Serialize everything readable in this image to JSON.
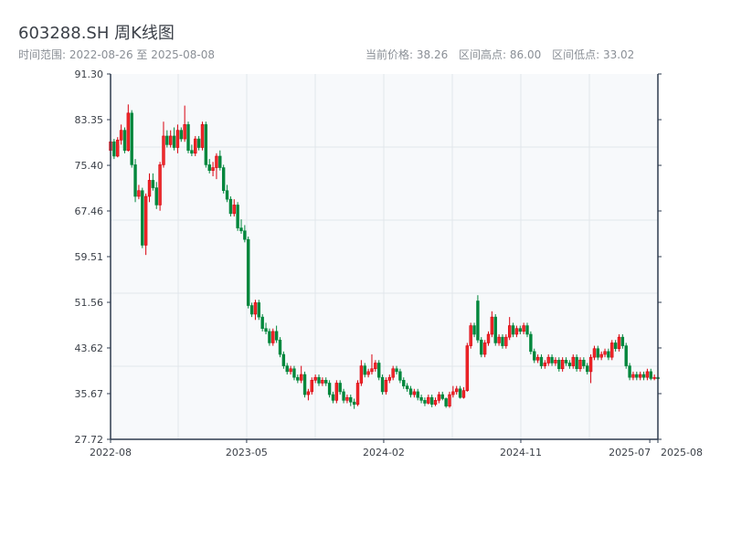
{
  "header": {
    "title": "603288.SH 周K线图",
    "range_label": "时间范围: 2022-08-26 至 2025-08-08",
    "current_price_label": "当前价格: 38.26",
    "high_label": "区间高点: 86.00",
    "low_label": "区间低点: 33.02"
  },
  "colors": {
    "up": "#d9000e",
    "down": "#00873c",
    "plot_bg": "#f7f9fb",
    "grid": "#e2e6eb",
    "axis": "#2e3b4e"
  },
  "chart_data": {
    "type": "candlestick",
    "title": "603288.SH 周K线图",
    "range": {
      "start": "2022-08-26",
      "end": "2025-08-08"
    },
    "current_price": 38.26,
    "period_high": 86.0,
    "period_low": 33.02,
    "up_color": "red",
    "down_color": "green",
    "ylim": [
      27.72,
      91.3
    ],
    "yticks": [
      "27.72",
      "35.67",
      "43.62",
      "51.56",
      "59.51",
      "67.46",
      "75.40",
      "83.35",
      "91.30"
    ],
    "xticks": [
      {
        "label": "2022-08",
        "date": "2022-08-26"
      },
      {
        "label": "2023-05",
        "date": "2023-05-21"
      },
      {
        "label": "2024-02",
        "date": "2024-02-15"
      },
      {
        "label": "2024-11",
        "date": "2024-11-11"
      },
      {
        "label": "2025-07",
        "date": "2025-07-23"
      },
      {
        "label": "2025-08",
        "date": "2025-08-08"
      }
    ],
    "grid": true,
    "ohlc": [
      [
        78.0,
        80.0,
        77.2,
        79.5
      ],
      [
        79.5,
        80.0,
        76.5,
        77.0
      ],
      [
        77.0,
        80.3,
        76.8,
        79.8
      ],
      [
        79.8,
        82.5,
        79.0,
        81.5
      ],
      [
        81.5,
        82.0,
        77.5,
        78.0
      ],
      [
        78.0,
        86.0,
        77.8,
        84.5
      ],
      [
        84.5,
        85.0,
        75.0,
        75.5
      ],
      [
        75.5,
        76.5,
        69.0,
        70.0
      ],
      [
        70.0,
        72.0,
        69.5,
        71.0
      ],
      [
        71.0,
        71.5,
        61.0,
        61.5
      ],
      [
        61.5,
        70.5,
        59.8,
        70.0
      ],
      [
        70.0,
        74.0,
        69.0,
        72.8
      ],
      [
        72.8,
        74.0,
        71.0,
        71.5
      ],
      [
        71.5,
        72.5,
        67.8,
        68.5
      ],
      [
        68.5,
        76.0,
        67.5,
        75.5
      ],
      [
        75.5,
        83.0,
        75.0,
        80.5
      ],
      [
        80.5,
        81.5,
        78.5,
        79.0
      ],
      [
        79.0,
        81.5,
        78.5,
        80.5
      ],
      [
        80.5,
        82.0,
        78.0,
        78.5
      ],
      [
        78.5,
        82.5,
        77.5,
        81.5
      ],
      [
        81.5,
        82.0,
        79.5,
        80.0
      ],
      [
        80.0,
        85.8,
        79.5,
        82.5
      ],
      [
        82.5,
        83.0,
        77.5,
        78.0
      ],
      [
        78.0,
        79.0,
        77.0,
        77.5
      ],
      [
        77.5,
        80.5,
        77.0,
        80.0
      ],
      [
        80.0,
        80.5,
        78.0,
        78.5
      ],
      [
        78.5,
        83.0,
        78.0,
        82.5
      ],
      [
        82.5,
        83.0,
        75.0,
        75.5
      ],
      [
        75.5,
        76.5,
        74.0,
        74.5
      ],
      [
        74.5,
        76.0,
        73.5,
        75.0
      ],
      [
        75.0,
        77.5,
        73.0,
        77.0
      ],
      [
        77.0,
        78.0,
        74.5,
        75.0
      ],
      [
        75.0,
        75.5,
        70.5,
        71.0
      ],
      [
        71.0,
        72.0,
        69.0,
        69.5
      ],
      [
        69.5,
        70.0,
        66.5,
        67.0
      ],
      [
        67.0,
        69.5,
        66.5,
        68.5
      ],
      [
        68.5,
        69.0,
        64.0,
        64.5
      ],
      [
        64.5,
        66.0,
        63.5,
        64.0
      ],
      [
        64.0,
        65.0,
        62.0,
        62.5
      ],
      [
        62.5,
        63.0,
        50.5,
        51.0
      ],
      [
        51.0,
        51.5,
        49.0,
        49.5
      ],
      [
        49.5,
        52.0,
        48.5,
        51.5
      ],
      [
        51.5,
        52.0,
        48.5,
        49.0
      ],
      [
        49.0,
        49.5,
        46.5,
        47.0
      ],
      [
        47.0,
        48.0,
        46.0,
        46.5
      ],
      [
        46.5,
        47.0,
        44.0,
        44.5
      ],
      [
        44.5,
        47.0,
        44.0,
        46.5
      ],
      [
        46.5,
        47.5,
        44.5,
        45.0
      ],
      [
        45.0,
        45.5,
        42.0,
        42.5
      ],
      [
        42.5,
        43.0,
        40.0,
        40.5
      ],
      [
        40.5,
        41.0,
        39.0,
        39.5
      ],
      [
        39.5,
        40.5,
        39.0,
        40.0
      ],
      [
        40.0,
        40.5,
        38.0,
        38.5
      ],
      [
        38.5,
        39.0,
        37.5,
        38.0
      ],
      [
        38.0,
        40.5,
        37.5,
        39.0
      ],
      [
        39.0,
        39.5,
        35.0,
        35.5
      ],
      [
        35.5,
        36.5,
        34.5,
        36.0
      ],
      [
        36.0,
        38.5,
        35.5,
        38.0
      ],
      [
        38.0,
        39.0,
        37.5,
        38.5
      ],
      [
        38.5,
        39.0,
        37.0,
        37.5
      ],
      [
        37.5,
        38.5,
        37.0,
        38.0
      ],
      [
        38.0,
        38.5,
        37.0,
        37.5
      ],
      [
        37.5,
        38.0,
        35.0,
        35.5
      ],
      [
        35.5,
        36.0,
        34.0,
        34.5
      ],
      [
        34.5,
        38.0,
        34.0,
        37.5
      ],
      [
        37.5,
        38.0,
        35.5,
        36.0
      ],
      [
        36.0,
        36.5,
        34.0,
        34.5
      ],
      [
        34.5,
        35.5,
        34.0,
        35.0
      ],
      [
        35.0,
        35.5,
        33.5,
        34.2
      ],
      [
        34.2,
        34.8,
        33.02,
        33.8
      ],
      [
        33.8,
        38.0,
        33.5,
        37.5
      ],
      [
        37.5,
        41.5,
        37.0,
        40.5
      ],
      [
        40.5,
        41.0,
        38.5,
        39.0
      ],
      [
        39.0,
        40.0,
        38.5,
        39.5
      ],
      [
        39.5,
        42.5,
        39.0,
        40.0
      ],
      [
        40.0,
        41.5,
        39.5,
        41.0
      ],
      [
        41.0,
        41.5,
        38.0,
        38.5
      ],
      [
        38.5,
        39.0,
        35.5,
        36.0
      ],
      [
        36.0,
        38.5,
        35.5,
        38.0
      ],
      [
        38.0,
        39.0,
        37.5,
        38.5
      ],
      [
        38.5,
        40.5,
        38.0,
        40.0
      ],
      [
        40.0,
        40.5,
        39.0,
        39.5
      ],
      [
        39.5,
        40.0,
        37.5,
        38.0
      ],
      [
        38.0,
        38.5,
        36.5,
        37.0
      ],
      [
        37.0,
        37.5,
        36.0,
        36.5
      ],
      [
        36.5,
        37.0,
        35.0,
        35.5
      ],
      [
        35.5,
        36.5,
        35.0,
        36.0
      ],
      [
        36.0,
        36.5,
        34.5,
        35.0
      ],
      [
        35.0,
        35.5,
        34.0,
        34.5
      ],
      [
        34.5,
        35.0,
        33.5,
        34.0
      ],
      [
        34.0,
        35.5,
        33.8,
        35.0
      ],
      [
        35.0,
        35.5,
        33.3,
        33.8
      ],
      [
        33.8,
        35.0,
        33.5,
        34.5
      ],
      [
        34.5,
        36.0,
        34.0,
        35.5
      ],
      [
        35.5,
        36.0,
        34.5,
        34.8
      ],
      [
        34.8,
        35.0,
        33.2,
        33.5
      ],
      [
        33.5,
        36.0,
        33.2,
        35.5
      ],
      [
        35.5,
        37.0,
        35.0,
        36.0
      ],
      [
        36.0,
        37.0,
        35.5,
        36.5
      ],
      [
        36.5,
        37.0,
        34.8,
        35.0
      ],
      [
        35.0,
        36.8,
        34.8,
        36.2
      ],
      [
        36.2,
        44.5,
        36.0,
        44.0
      ],
      [
        44.0,
        48.0,
        43.5,
        47.5
      ],
      [
        47.5,
        48.0,
        45.5,
        46.0
      ],
      [
        51.8,
        52.8,
        44.5,
        45.0
      ],
      [
        45.0,
        45.5,
        42.0,
        42.5
      ],
      [
        42.5,
        45.0,
        42.0,
        44.5
      ],
      [
        44.5,
        46.5,
        44.0,
        46.0
      ],
      [
        46.0,
        50.0,
        45.5,
        49.0
      ],
      [
        49.0,
        49.5,
        44.0,
        44.5
      ],
      [
        44.5,
        46.0,
        44.0,
        45.5
      ],
      [
        45.5,
        46.0,
        43.5,
        44.0
      ],
      [
        44.0,
        46.0,
        43.5,
        45.5
      ],
      [
        45.5,
        49.0,
        45.0,
        47.5
      ],
      [
        47.5,
        48.0,
        45.5,
        46.0
      ],
      [
        46.0,
        47.5,
        45.5,
        47.0
      ],
      [
        47.0,
        47.5,
        46.0,
        46.5
      ],
      [
        46.5,
        48.0,
        46.0,
        47.5
      ],
      [
        47.5,
        48.0,
        45.5,
        46.0
      ],
      [
        46.0,
        46.5,
        42.5,
        43.0
      ],
      [
        43.0,
        43.5,
        41.0,
        41.5
      ],
      [
        41.5,
        42.5,
        41.0,
        42.0
      ],
      [
        42.0,
        42.5,
        40.0,
        40.5
      ],
      [
        40.5,
        41.5,
        40.0,
        41.0
      ],
      [
        41.0,
        42.5,
        40.5,
        42.0
      ],
      [
        42.0,
        42.5,
        40.5,
        41.0
      ],
      [
        41.0,
        42.0,
        40.5,
        41.5
      ],
      [
        41.5,
        42.0,
        39.5,
        40.0
      ],
      [
        40.0,
        42.0,
        39.5,
        41.5
      ],
      [
        41.5,
        42.0,
        40.5,
        41.0
      ],
      [
        41.0,
        41.5,
        40.0,
        40.5
      ],
      [
        40.5,
        42.5,
        40.0,
        42.0
      ],
      [
        42.0,
        42.5,
        39.5,
        40.0
      ],
      [
        40.0,
        42.0,
        39.5,
        41.5
      ],
      [
        41.5,
        42.0,
        40.0,
        40.5
      ],
      [
        40.5,
        41.0,
        39.0,
        39.5
      ],
      [
        39.5,
        42.5,
        37.5,
        42.0
      ],
      [
        42.0,
        44.0,
        41.5,
        43.5
      ],
      [
        43.5,
        44.0,
        41.5,
        42.0
      ],
      [
        42.0,
        43.0,
        41.5,
        42.5
      ],
      [
        42.5,
        43.5,
        42.0,
        43.0
      ],
      [
        43.0,
        43.5,
        41.5,
        42.0
      ],
      [
        42.0,
        45.0,
        41.5,
        44.5
      ],
      [
        44.5,
        45.0,
        43.0,
        43.5
      ],
      [
        43.5,
        46.0,
        43.0,
        45.5
      ],
      [
        45.5,
        46.0,
        43.5,
        44.0
      ],
      [
        44.0,
        44.5,
        40.0,
        40.5
      ],
      [
        40.5,
        41.0,
        38.0,
        38.5
      ],
      [
        38.5,
        39.5,
        38.0,
        39.0
      ],
      [
        39.0,
        39.5,
        38.0,
        38.5
      ],
      [
        38.5,
        39.5,
        38.0,
        39.0
      ],
      [
        39.0,
        39.5,
        38.0,
        38.5
      ],
      [
        38.5,
        40.0,
        38.0,
        39.5
      ],
      [
        39.5,
        40.0,
        38.0,
        38.3
      ],
      [
        38.3,
        39.0,
        38.0,
        38.5
      ],
      [
        38.5,
        38.8,
        37.8,
        38.26
      ]
    ]
  }
}
